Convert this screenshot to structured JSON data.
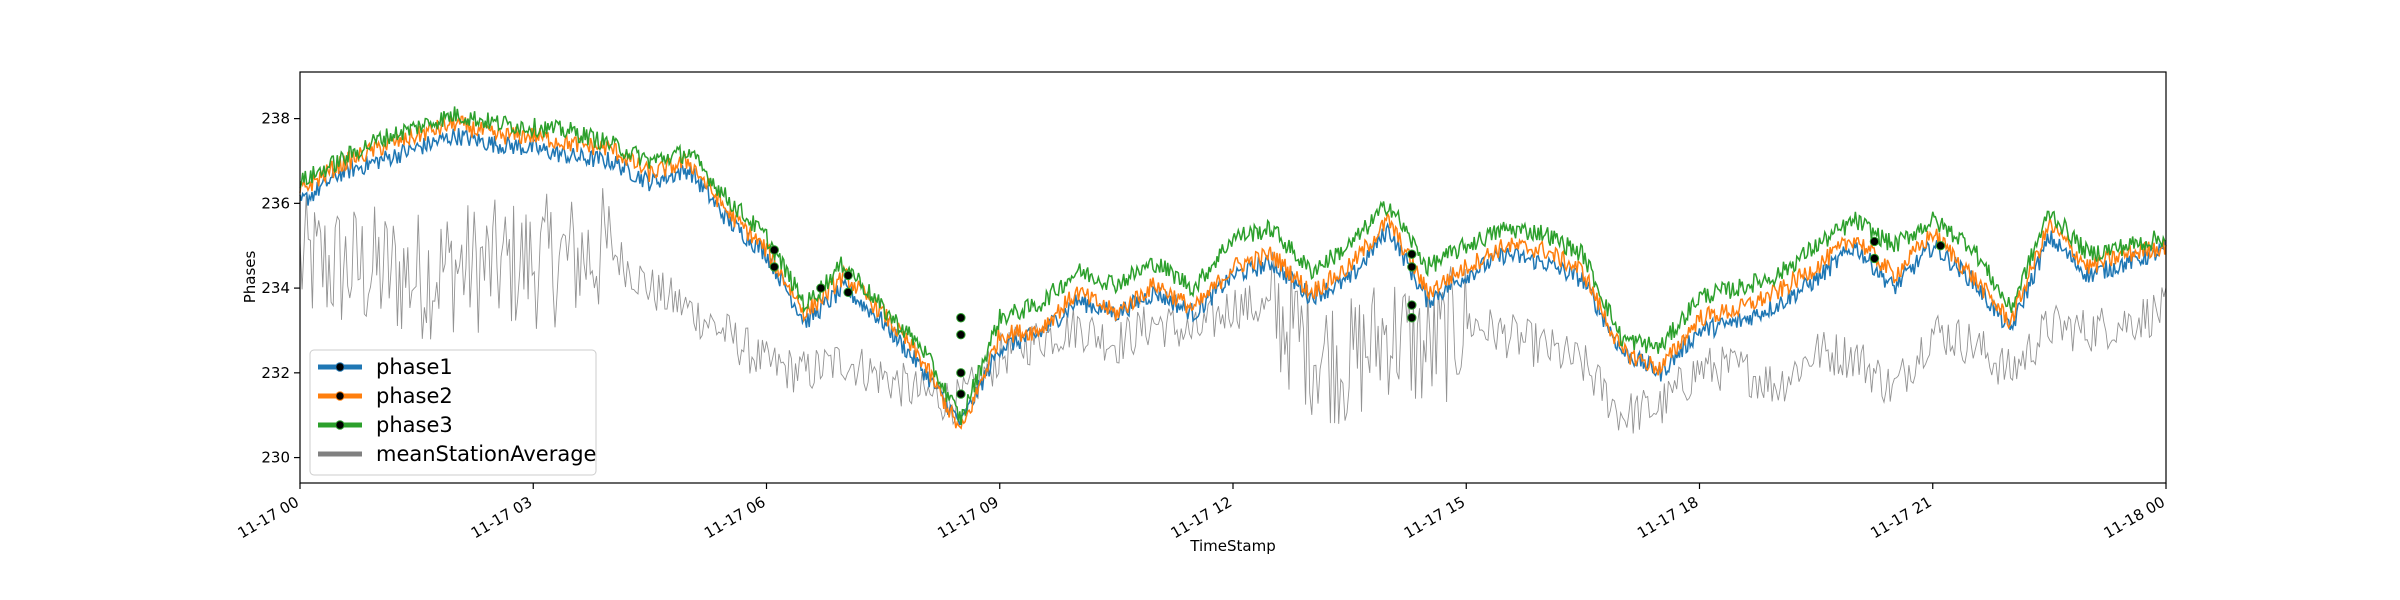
{
  "chart_data": {
    "type": "line",
    "title": "",
    "xlabel": "TimeStamp",
    "ylabel": "Phases",
    "xlim": [
      "11-17 00",
      "11-18 00"
    ],
    "ylim": [
      229.4,
      239.1
    ],
    "grid": false,
    "legend_position": "lower-left",
    "x_ticks": [
      "11-17 00",
      "11-17 03",
      "11-17 06",
      "11-17 09",
      "11-17 12",
      "11-17 15",
      "11-17 18",
      "11-17 21",
      "11-18 00"
    ],
    "y_ticks": [
      "230",
      "232",
      "234",
      "236",
      "238"
    ],
    "x_hours": [
      0,
      0.5,
      1,
      1.5,
      2,
      2.5,
      3,
      3.5,
      4,
      4.5,
      5,
      5.5,
      6,
      6.5,
      7,
      7.5,
      8,
      8.5,
      9,
      9.5,
      10,
      10.5,
      11,
      11.5,
      12,
      12.5,
      13,
      13.5,
      14,
      14.5,
      15,
      15.5,
      16,
      16.5,
      17,
      17.5,
      18,
      18.5,
      19,
      19.5,
      20,
      20.5,
      21,
      21.5,
      22,
      22.5,
      23,
      23.5,
      24
    ],
    "series": [
      {
        "name": "phase1",
        "color": "#1f77b4",
        "values": [
          236.0,
          236.7,
          237.0,
          237.3,
          237.6,
          237.4,
          237.3,
          237.1,
          237.0,
          236.5,
          236.8,
          235.6,
          234.8,
          233.2,
          234.0,
          233.2,
          232.1,
          230.8,
          232.6,
          232.9,
          233.7,
          233.4,
          233.9,
          233.4,
          234.3,
          234.6,
          233.8,
          234.2,
          235.4,
          233.7,
          234.3,
          234.8,
          234.6,
          234.2,
          232.5,
          232.0,
          233.0,
          233.2,
          233.6,
          234.2,
          235.0,
          234.0,
          235.0,
          234.2,
          233.0,
          235.2,
          234.3,
          234.6,
          234.9
        ]
      },
      {
        "name": "phase2",
        "color": "#ff7f0e",
        "values": [
          236.3,
          236.9,
          237.3,
          237.6,
          237.9,
          237.6,
          237.6,
          237.4,
          237.3,
          236.7,
          237.0,
          235.8,
          234.9,
          233.4,
          234.3,
          233.4,
          232.3,
          230.6,
          232.9,
          233.0,
          233.9,
          233.4,
          234.1,
          233.5,
          234.5,
          234.8,
          233.9,
          234.5,
          235.6,
          233.9,
          234.5,
          235.0,
          234.9,
          234.4,
          232.5,
          232.1,
          233.3,
          233.5,
          233.9,
          234.5,
          235.2,
          234.3,
          235.3,
          234.3,
          233.2,
          235.5,
          234.5,
          234.8,
          235.0
        ]
      },
      {
        "name": "phase3",
        "color": "#2ca02c",
        "values": [
          236.5,
          237.0,
          237.5,
          237.8,
          238.1,
          237.9,
          237.8,
          237.7,
          237.4,
          237.0,
          237.2,
          236.1,
          235.2,
          233.6,
          234.6,
          233.5,
          232.6,
          230.9,
          233.3,
          233.6,
          234.4,
          234.1,
          234.6,
          234.0,
          235.2,
          235.4,
          234.4,
          235.0,
          236.0,
          234.5,
          235.0,
          235.4,
          235.3,
          234.8,
          232.8,
          232.6,
          233.8,
          234.0,
          234.3,
          235.0,
          235.6,
          235.0,
          235.6,
          235.0,
          233.5,
          235.8,
          234.8,
          235.0,
          235.2
        ]
      },
      {
        "name": "meanStationAverage",
        "color": "#808080",
        "values": [
          234.6,
          234.5,
          234.4,
          234.3,
          234.5,
          234.5,
          234.6,
          234.7,
          234.9,
          234.0,
          233.5,
          232.9,
          232.2,
          232.0,
          232.3,
          231.9,
          231.5,
          231.3,
          232.4,
          232.8,
          233.1,
          232.7,
          233.2,
          232.9,
          233.6,
          233.5,
          232.6,
          232.2,
          233.0,
          232.5,
          233.2,
          232.9,
          232.6,
          232.2,
          231.0,
          231.2,
          232.1,
          232.1,
          231.7,
          232.5,
          232.4,
          231.6,
          233.0,
          232.7,
          232.0,
          233.1,
          233.0,
          233.2,
          233.5
        ]
      }
    ],
    "markers": [
      {
        "x": 6.1,
        "y": 234.9
      },
      {
        "x": 6.1,
        "y": 234.5
      },
      {
        "x": 6.7,
        "y": 234.0
      },
      {
        "x": 7.05,
        "y": 234.3
      },
      {
        "x": 7.05,
        "y": 233.9
      },
      {
        "x": 8.5,
        "y": 233.3
      },
      {
        "x": 8.5,
        "y": 232.9
      },
      {
        "x": 8.5,
        "y": 232.0
      },
      {
        "x": 8.5,
        "y": 231.5
      },
      {
        "x": 14.3,
        "y": 234.8
      },
      {
        "x": 14.3,
        "y": 234.5
      },
      {
        "x": 14.3,
        "y": 233.6
      },
      {
        "x": 14.3,
        "y": 233.3
      },
      {
        "x": 20.25,
        "y": 235.1
      },
      {
        "x": 20.25,
        "y": 234.7
      },
      {
        "x": 21.1,
        "y": 235.0
      }
    ]
  }
}
